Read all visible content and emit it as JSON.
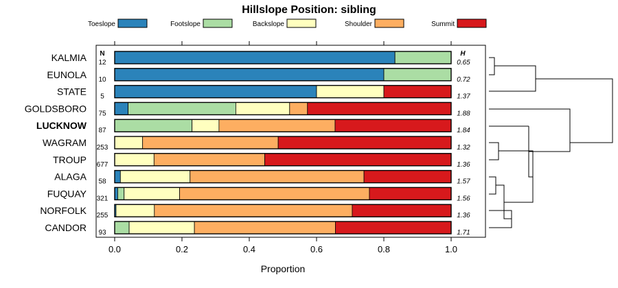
{
  "chart_data": {
    "type": "bar",
    "orientation": "horizontal-stacked",
    "title": "Hillslope Position: sibling",
    "xlabel": "Proportion",
    "xlim": [
      0,
      1
    ],
    "xticks": [
      "0.0",
      "0.2",
      "0.4",
      "0.6",
      "0.8",
      "1.0"
    ],
    "n_header": "N",
    "h_header": "H",
    "legend_position": "top",
    "series": [
      {
        "name": "Toeslope",
        "color": "#2b83ba"
      },
      {
        "name": "Footslope",
        "color": "#abdda4"
      },
      {
        "name": "Backslope",
        "color": "#ffffbf"
      },
      {
        "name": "Shoulder",
        "color": "#fdae61"
      },
      {
        "name": "Summit",
        "color": "#d7191c"
      }
    ],
    "categories": [
      {
        "name": "KALMIA",
        "n": "12",
        "h": "0.65",
        "bold": false,
        "values": [
          0.833,
          0.167,
          0,
          0,
          0
        ]
      },
      {
        "name": "EUNOLA",
        "n": "10",
        "h": "0.72",
        "bold": false,
        "values": [
          0.8,
          0.2,
          0,
          0,
          0
        ]
      },
      {
        "name": "STATE",
        "n": "5",
        "h": "1.37",
        "bold": false,
        "values": [
          0.6,
          0,
          0.2,
          0,
          0.2
        ]
      },
      {
        "name": "GOLDSBORO",
        "n": "75",
        "h": "1.88",
        "bold": false,
        "values": [
          0.04,
          0.32,
          0.16,
          0.053,
          0.427
        ]
      },
      {
        "name": "LUCKNOW",
        "n": "87",
        "h": "1.84",
        "bold": true,
        "values": [
          0,
          0.23,
          0.08,
          0.345,
          0.345
        ]
      },
      {
        "name": "WAGRAM",
        "n": "253",
        "h": "1.32",
        "bold": false,
        "values": [
          0,
          0,
          0.083,
          0.403,
          0.514
        ]
      },
      {
        "name": "TROUP",
        "n": "677",
        "h": "1.36",
        "bold": false,
        "values": [
          0,
          0,
          0.117,
          0.329,
          0.554
        ]
      },
      {
        "name": "ALAGA",
        "n": "58",
        "h": "1.57",
        "bold": false,
        "values": [
          0.017,
          0,
          0.207,
          0.517,
          0.259
        ]
      },
      {
        "name": "FUQUAY",
        "n": "321",
        "h": "1.56",
        "bold": false,
        "values": [
          0.009,
          0.019,
          0.165,
          0.564,
          0.243
        ]
      },
      {
        "name": "NORFOLK",
        "n": "255",
        "h": "1.36",
        "bold": false,
        "values": [
          0.004,
          0,
          0.114,
          0.588,
          0.294
        ]
      },
      {
        "name": "CANDOR",
        "n": "93",
        "h": "1.71",
        "bold": false,
        "values": [
          0,
          0.043,
          0.194,
          0.419,
          0.344
        ]
      }
    ]
  }
}
